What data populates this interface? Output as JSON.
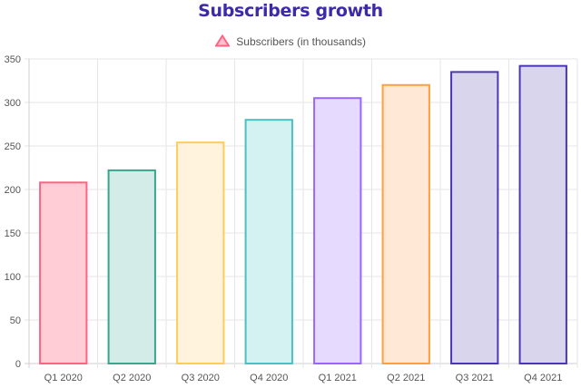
{
  "chart_data": {
    "type": "bar",
    "title": "Subscribers growth",
    "xlabel": "",
    "ylabel": "",
    "categories": [
      "Q1 2020",
      "Q2 2020",
      "Q3 2020",
      "Q4 2020",
      "Q1 2021",
      "Q2 2021",
      "Q3 2021",
      "Q4 2021"
    ],
    "series": [
      {
        "name": "Subscribers (in thousands)",
        "values": [
          208,
          222,
          254,
          280,
          305,
          320,
          335,
          342
        ]
      }
    ],
    "ylim": [
      0,
      350
    ],
    "yticks": [
      "0",
      "50",
      "100",
      "150",
      "200",
      "250",
      "300",
      "350"
    ],
    "grid": true,
    "legend": "top-center",
    "colors": {
      "title": "#3c2aa8",
      "legend_marker_fill": "#ffc2cc",
      "legend_marker_stroke": "#ff6384",
      "bar_fills": [
        "#ffcdd6",
        "#d3ece8",
        "#fff3de",
        "#d5f2f2",
        "#e6dbff",
        "#ffe9d6",
        "#d9d5ec",
        "#d9d5ec"
      ],
      "bar_strokes": [
        "#ff6384",
        "#3aa58a",
        "#ffcd56",
        "#4bc0c0",
        "#9966ff",
        "#ff9f40",
        "#4b35b8",
        "#4b35b8"
      ]
    }
  }
}
